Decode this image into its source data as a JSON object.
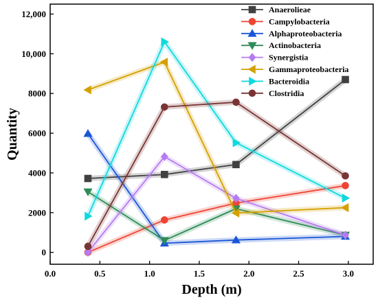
{
  "chart_data": {
    "type": "line",
    "title": "",
    "xlabel": "Depth (m)",
    "ylabel": "Quantity",
    "xlim": [
      0.0,
      3.25
    ],
    "ylim": [
      -600,
      12500
    ],
    "xticks": [
      0.0,
      0.5,
      1.0,
      1.5,
      2.0,
      2.5,
      3.0
    ],
    "xtick_labels": [
      "0.0",
      "0.5",
      "1.0",
      "1.5",
      "2.0",
      "2.5",
      "3.0"
    ],
    "yticks": [
      0,
      2000,
      4000,
      6000,
      8000,
      10000,
      12000
    ],
    "ytick_labels": [
      "0",
      "2000",
      "4000",
      "6000",
      "8000",
      "10,000",
      "12,000"
    ],
    "legend_position": "top-right",
    "x": [
      0.38,
      1.15,
      1.87,
      2.97
    ],
    "series": [
      {
        "name": "Anaerolieae",
        "color": "#404040",
        "marker": "square",
        "values": [
          3720,
          3920,
          4420,
          8700
        ]
      },
      {
        "name": "Campylobacteria",
        "color": "#ee4433",
        "marker": "circle",
        "values": [
          0,
          1630,
          2480,
          3360
        ]
      },
      {
        "name": "Alphaproteobacteria",
        "color": "#1a56d6",
        "marker": "triangle-up",
        "values": [
          5980,
          460,
          620,
          800
        ]
      },
      {
        "name": "Actinobacteria",
        "color": "#2e8b57",
        "marker": "triangle-down",
        "values": [
          3050,
          600,
          2200,
          870
        ]
      },
      {
        "name": "Synergistia",
        "color": "#b57bf0",
        "marker": "diamond",
        "values": [
          0,
          4820,
          2720,
          870
        ]
      },
      {
        "name": "Gammaproteobacteria",
        "color": "#d4a000",
        "marker": "triangle-left",
        "values": [
          8180,
          9580,
          1980,
          2250
        ]
      },
      {
        "name": "Bacteroidia",
        "color": "#10d8dd",
        "marker": "triangle-right",
        "values": [
          1820,
          10600,
          5520,
          2730
        ]
      },
      {
        "name": "Clostridia",
        "color": "#7a3434",
        "marker": "circle",
        "values": [
          300,
          7320,
          7560,
          3850
        ]
      }
    ]
  }
}
